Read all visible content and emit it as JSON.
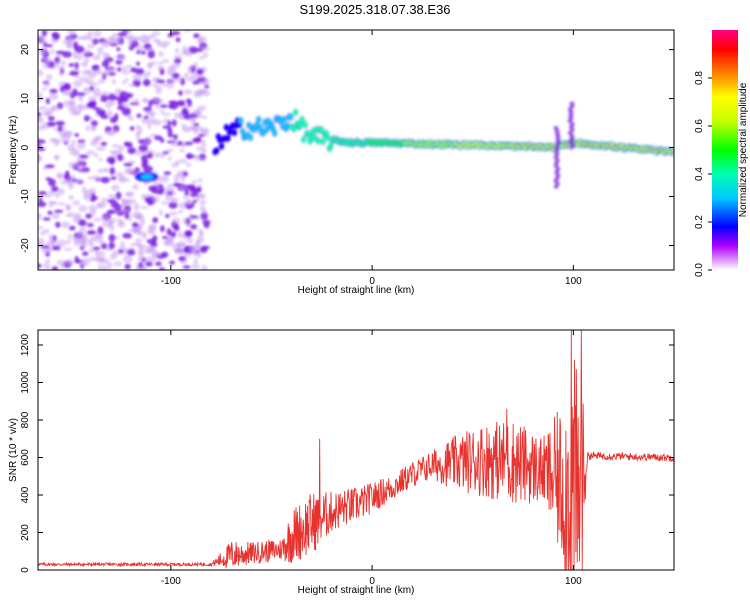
{
  "title": "S199.2025.318.07.38.E36",
  "chart_data": [
    {
      "type": "heatmap",
      "name": "spectrogram",
      "xlabel": "Height of straight line (km)",
      "ylabel": "Frequency (Hz)",
      "xlim": [
        -166,
        150
      ],
      "ylim": [
        -25,
        24
      ],
      "xticks": [
        -100,
        0,
        100
      ],
      "yticks": [
        -20,
        -10,
        0,
        10,
        20
      ],
      "colorbar": {
        "label": "Normalized spectral amplitude",
        "range": [
          0,
          1
        ],
        "ticks": [
          0.0,
          0.2,
          0.4,
          0.6,
          0.8
        ]
      },
      "features": {
        "noise_region_x": [
          -166,
          -82
        ],
        "main_band_x": [
          -78,
          150
        ],
        "main_band_center_hz": [
          {
            "x": -80,
            "f": -4
          },
          {
            "x": -75,
            "f": 2
          },
          {
            "x": -65,
            "f": 4
          },
          {
            "x": -50,
            "f": 4
          },
          {
            "x": -40,
            "f": 6
          },
          {
            "x": -30,
            "f": 2
          },
          {
            "x": -10,
            "f": 1
          },
          {
            "x": 0,
            "f": 1
          },
          {
            "x": 50,
            "f": 0.5
          },
          {
            "x": 90,
            "f": 0
          },
          {
            "x": 100,
            "f": 1
          },
          {
            "x": 150,
            "f": -1
          }
        ],
        "low_blob": {
          "x": -112,
          "f": -6
        }
      }
    },
    {
      "type": "line",
      "name": "snr",
      "xlabel": "Height of straight line (km)",
      "ylabel": "SNR (10 * v/v)",
      "xlim": [
        -166,
        150
      ],
      "ylim": [
        0,
        1280
      ],
      "xticks": [
        -100,
        0,
        100
      ],
      "yticks": [
        0,
        200,
        400,
        600,
        800,
        1000,
        1200
      ],
      "color": "#e8322e",
      "envelope": [
        {
          "x": -166,
          "base": 30,
          "amp": 8
        },
        {
          "x": -80,
          "base": 30,
          "amp": 8
        },
        {
          "x": -70,
          "base": 80,
          "amp": 80
        },
        {
          "x": -60,
          "base": 90,
          "amp": 60
        },
        {
          "x": -45,
          "base": 110,
          "amp": 60
        },
        {
          "x": -40,
          "base": 180,
          "amp": 150
        },
        {
          "x": -30,
          "base": 250,
          "amp": 170
        },
        {
          "x": -20,
          "base": 310,
          "amp": 110
        },
        {
          "x": -5,
          "base": 360,
          "amp": 90
        },
        {
          "x": 10,
          "base": 440,
          "amp": 70
        },
        {
          "x": 20,
          "base": 510,
          "amp": 70
        },
        {
          "x": 30,
          "base": 560,
          "amp": 80
        },
        {
          "x": 40,
          "base": 570,
          "amp": 140
        },
        {
          "x": 55,
          "base": 590,
          "amp": 200
        },
        {
          "x": 70,
          "base": 580,
          "amp": 230
        },
        {
          "x": 85,
          "base": 530,
          "amp": 180
        },
        {
          "x": 95,
          "base": 450,
          "amp": 450
        },
        {
          "x": 100,
          "base": 400,
          "amp": 750
        },
        {
          "x": 104,
          "base": 420,
          "amp": 600
        },
        {
          "x": 107,
          "base": 610,
          "amp": 20
        },
        {
          "x": 150,
          "base": 600,
          "amp": 20
        }
      ],
      "spikes": [
        {
          "x": -26,
          "y": 700
        },
        {
          "x": 67,
          "y": 860
        },
        {
          "x": 99,
          "y": 1280
        },
        {
          "x": 104,
          "y": 1280
        },
        {
          "x": 102,
          "y": 40
        }
      ]
    }
  ]
}
